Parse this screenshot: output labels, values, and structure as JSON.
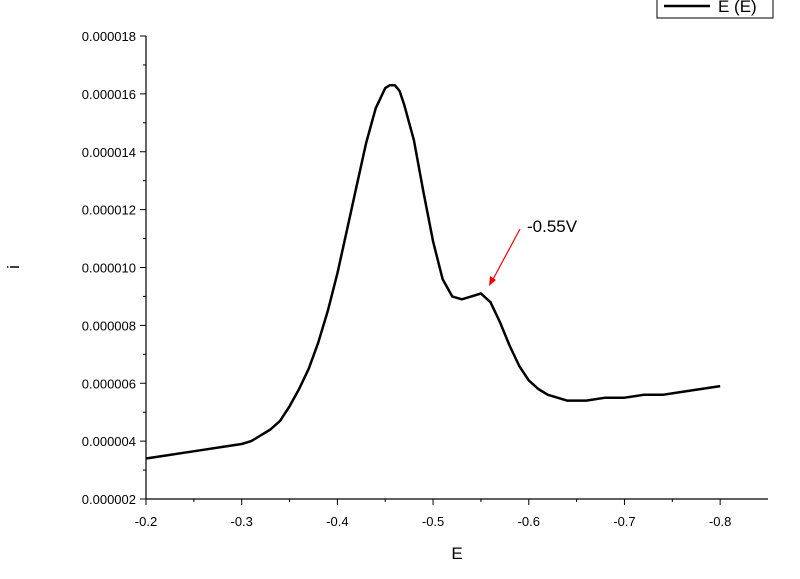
{
  "chart_data": {
    "type": "line",
    "xlabel": "E",
    "ylabel": "i",
    "xlim": [
      -0.2,
      -0.85
    ],
    "ylim": [
      2e-06,
      1.8e-05
    ],
    "x_ticks": [
      -0.2,
      -0.3,
      -0.4,
      -0.5,
      -0.6,
      -0.7,
      -0.8
    ],
    "x_tick_labels": [
      "-0.2",
      "-0.3",
      "-0.4",
      "-0.5",
      "-0.6",
      "-0.7",
      "-0.8"
    ],
    "y_ticks": [
      2e-06,
      4e-06,
      6e-06,
      8e-06,
      1e-05,
      1.2e-05,
      1.4e-05,
      1.6e-05,
      1.8e-05
    ],
    "y_tick_labels": [
      "0.000002",
      "0.000004",
      "0.000006",
      "0.000008",
      "0.000010",
      "0.000012",
      "0.000014",
      "0.000016",
      "0.000018"
    ],
    "legend": {
      "position": "top-right",
      "entries": [
        "E (E)"
      ]
    },
    "annotation": {
      "text": "-0.55V",
      "x": -0.55,
      "y": 9.2e-06
    },
    "series": [
      {
        "name": "E (E)",
        "color": "#000000",
        "x": [
          -0.2,
          -0.22,
          -0.24,
          -0.26,
          -0.28,
          -0.3,
          -0.31,
          -0.32,
          -0.33,
          -0.34,
          -0.35,
          -0.36,
          -0.37,
          -0.38,
          -0.39,
          -0.4,
          -0.41,
          -0.42,
          -0.43,
          -0.44,
          -0.45,
          -0.455,
          -0.46,
          -0.465,
          -0.47,
          -0.48,
          -0.49,
          -0.5,
          -0.51,
          -0.52,
          -0.53,
          -0.54,
          -0.55,
          -0.56,
          -0.57,
          -0.58,
          -0.59,
          -0.6,
          -0.61,
          -0.62,
          -0.63,
          -0.64,
          -0.65,
          -0.66,
          -0.68,
          -0.7,
          -0.72,
          -0.74,
          -0.76,
          -0.78,
          -0.8
        ],
        "y": [
          3.4e-06,
          3.5e-06,
          3.6e-06,
          3.7e-06,
          3.8e-06,
          3.9e-06,
          4e-06,
          4.2e-06,
          4.4e-06,
          4.7e-06,
          5.2e-06,
          5.8e-06,
          6.5e-06,
          7.4e-06,
          8.5e-06,
          9.8e-06,
          1.13e-05,
          1.28e-05,
          1.43e-05,
          1.55e-05,
          1.62e-05,
          1.63e-05,
          1.63e-05,
          1.61e-05,
          1.56e-05,
          1.44e-05,
          1.26e-05,
          1.09e-05,
          9.6e-06,
          9e-06,
          8.9e-06,
          9e-06,
          9.1e-06,
          8.8e-06,
          8.1e-06,
          7.3e-06,
          6.6e-06,
          6.1e-06,
          5.8e-06,
          5.6e-06,
          5.5e-06,
          5.4e-06,
          5.4e-06,
          5.4e-06,
          5.5e-06,
          5.5e-06,
          5.6e-06,
          5.6e-06,
          5.7e-06,
          5.8e-06,
          5.9e-06
        ]
      }
    ]
  }
}
